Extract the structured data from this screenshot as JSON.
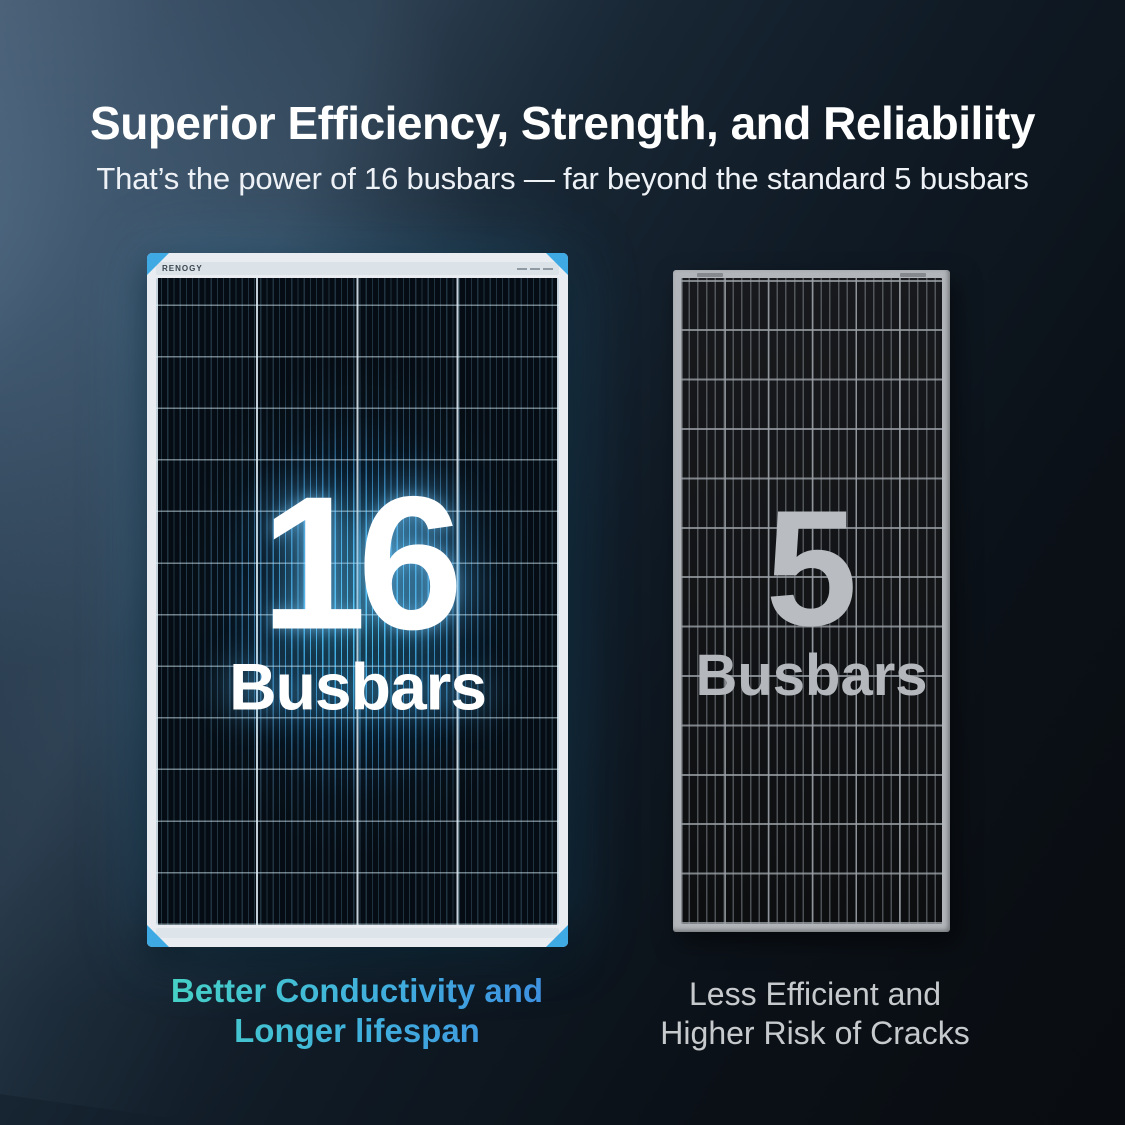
{
  "header": {
    "title": "Superior Efficiency, Strength, and Reliability",
    "subtitle": "That’s the power of 16 busbars — far beyond the standard 5 busbars"
  },
  "left_panel": {
    "count": "16",
    "label": "Busbars",
    "brand": "RENOGY",
    "caption_line1": "Better Conductivity and",
    "caption_line2": "Longer lifespan",
    "busbars_per_cell": 16,
    "accent_color": "#3fa9e4",
    "glow_color": "#2b9cd5",
    "caption_gradient": [
      "#47dabf",
      "#3c85e2"
    ]
  },
  "right_panel": {
    "count": "5",
    "label": "Busbars",
    "caption_line1": "Less Efficient and",
    "caption_line2": "Higher Risk of Cracks",
    "busbars_per_cell": 5,
    "frame_color": "#b2b6ba",
    "text_color": "#c6cacd"
  }
}
